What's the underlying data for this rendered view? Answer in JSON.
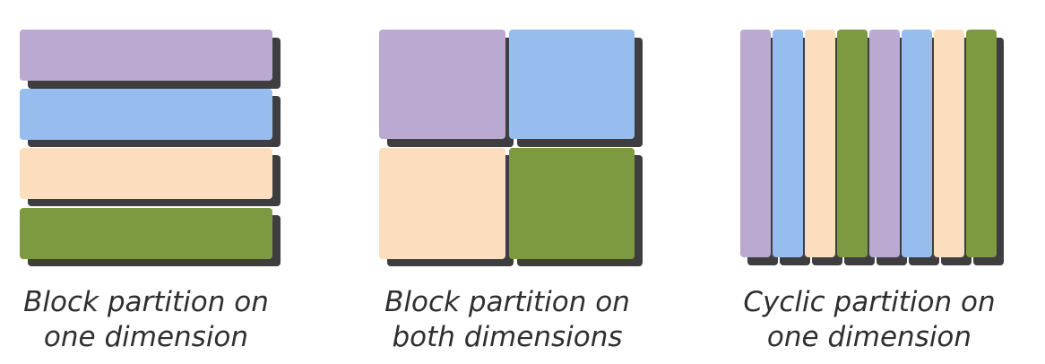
{
  "colors": {
    "purple": "#baa9d0",
    "blue": "#97bcee",
    "peach": "#fcddbe",
    "green": "#7e9a41",
    "shadow": "#3e3e40"
  },
  "panels": [
    {
      "caption": [
        "Block partition on",
        "one dimension"
      ]
    },
    {
      "caption": [
        "Block partition on",
        "both dimensions"
      ]
    },
    {
      "caption": [
        "Cyclic partition on",
        "one dimension"
      ]
    }
  ]
}
